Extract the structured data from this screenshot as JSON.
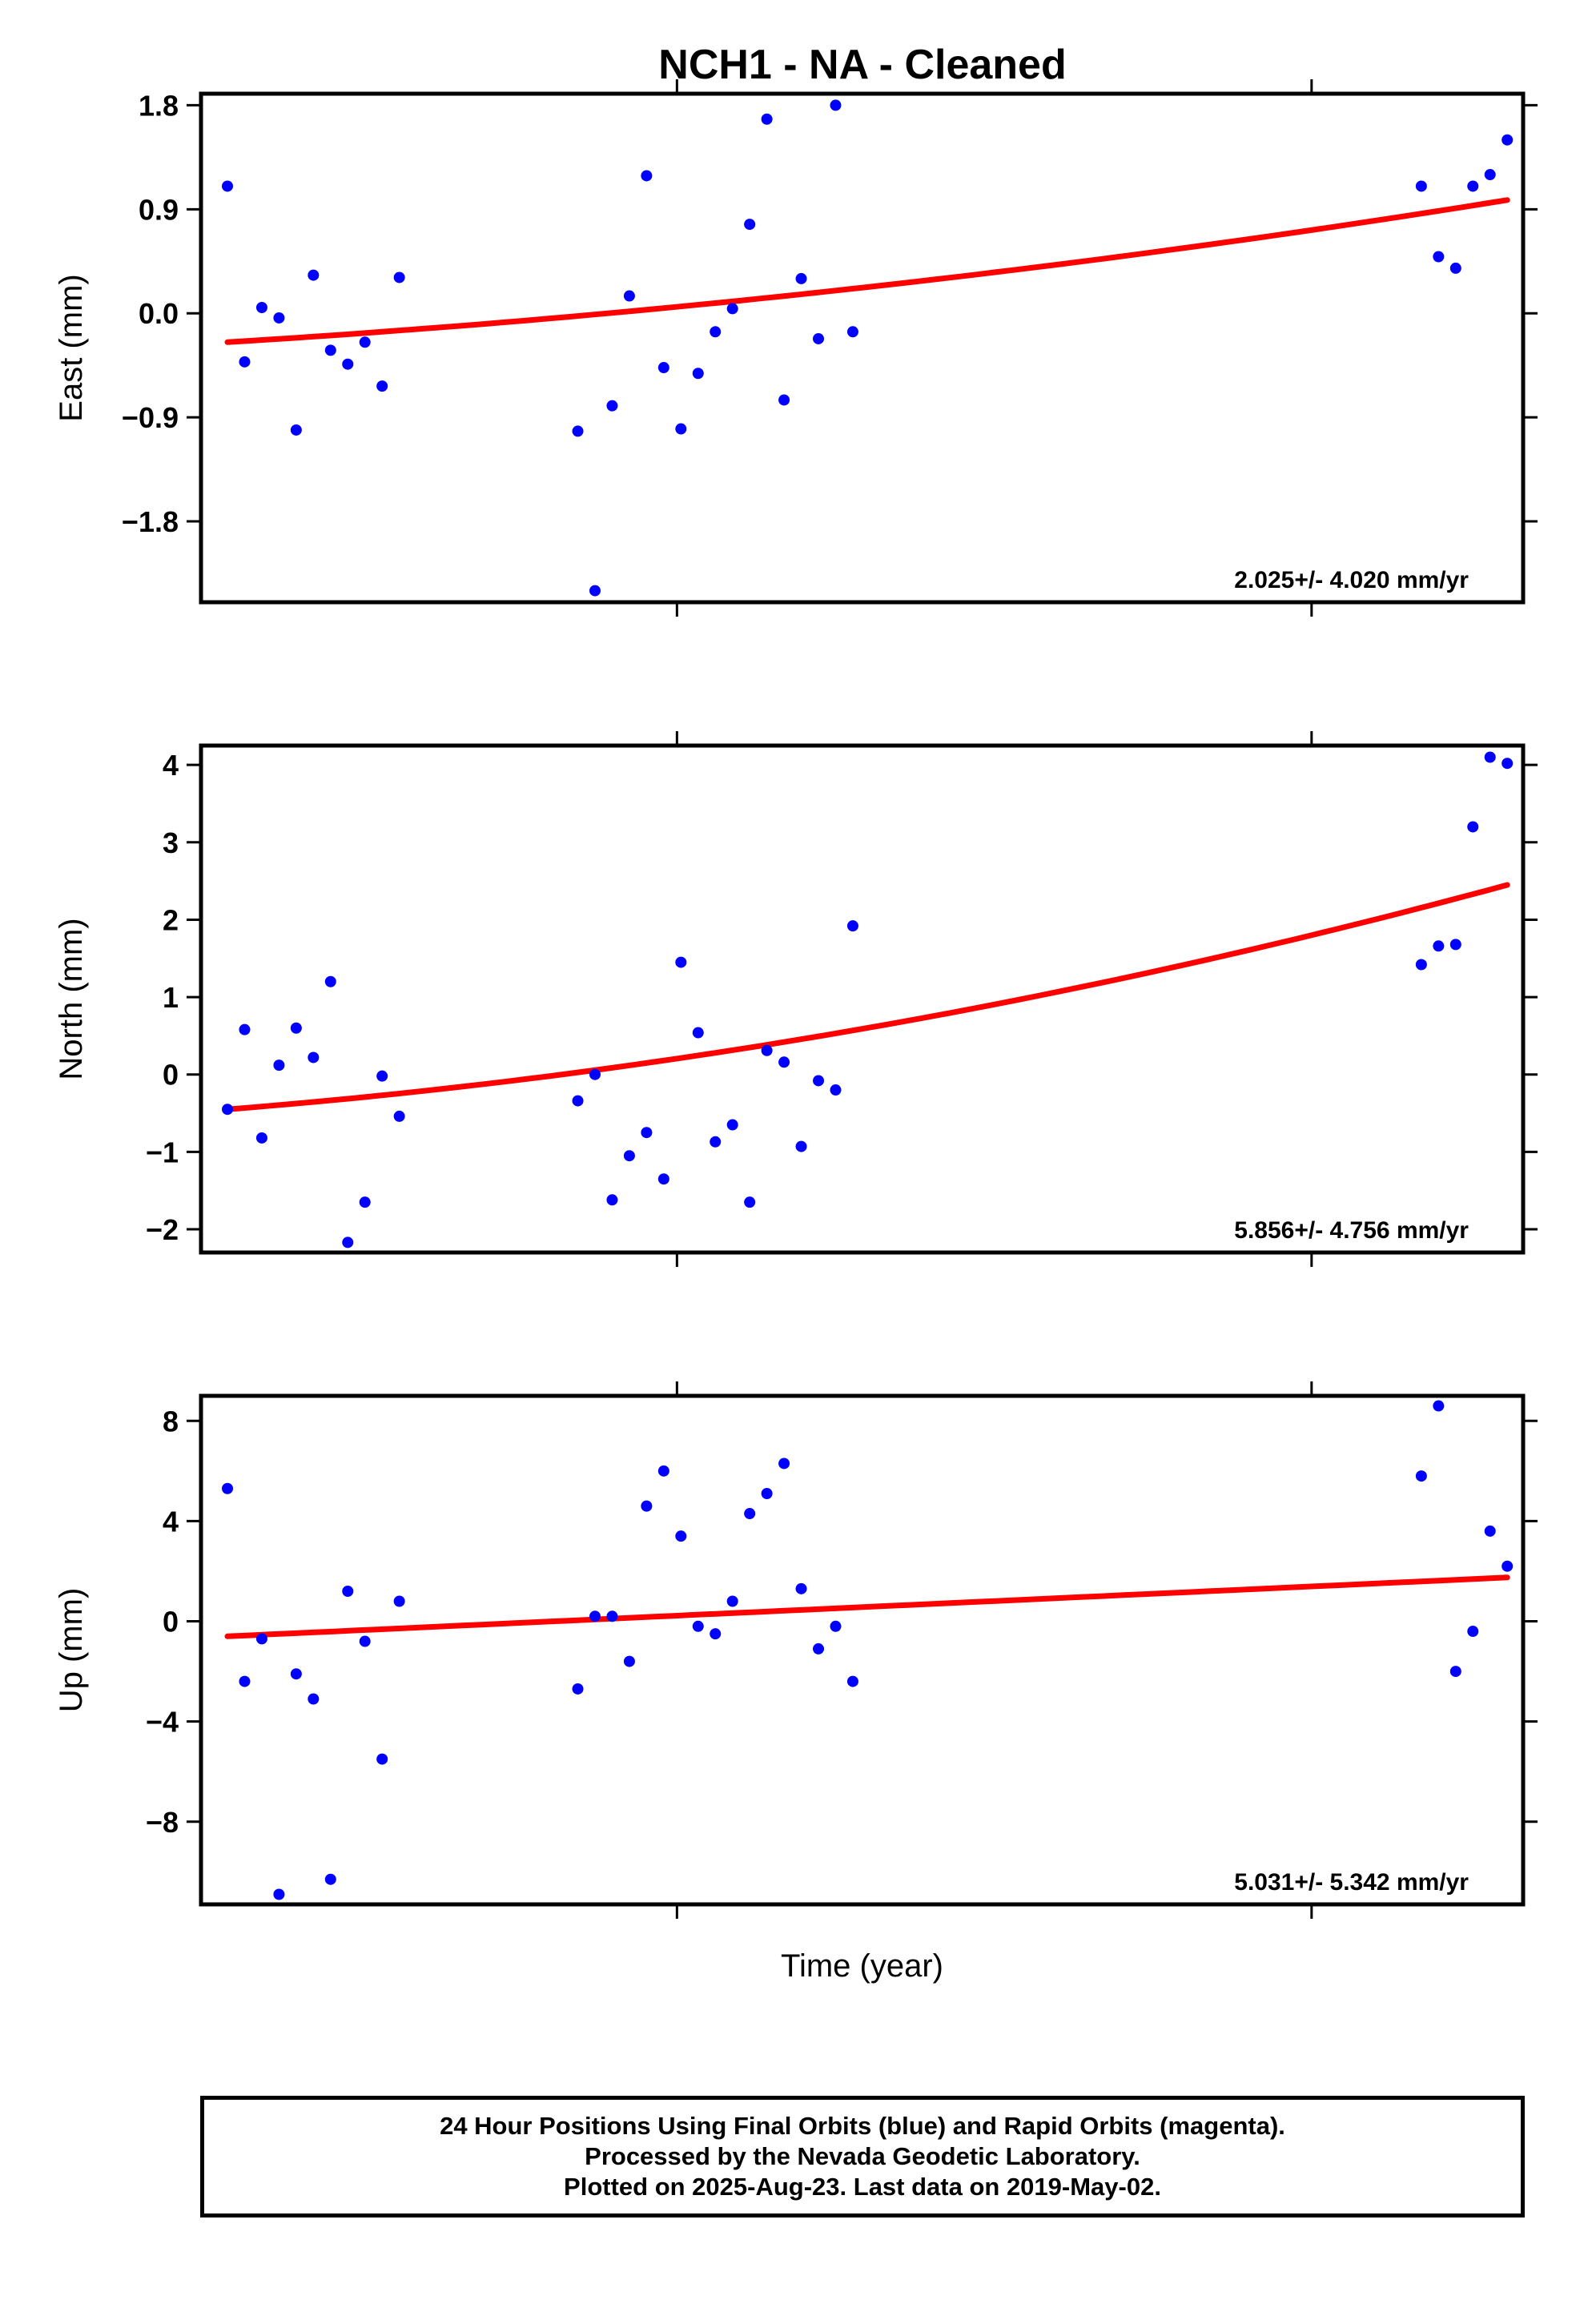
{
  "title": "NCH1  - NA - Cleaned",
  "footer": {
    "line1": "24 Hour Positions Using Final Orbits (blue) and Rapid Orbits (magenta).",
    "line2": "Processed by the Nevada Geodetic Laboratory.",
    "line3": "Plotted on 2025-Aug-23. Last data on 2019-May-02."
  },
  "colors": {
    "points": "#0000ff",
    "fit": "#ff0000",
    "axis": "#000000"
  },
  "chart_data": [
    {
      "type": "scatter",
      "ylabel": "East (mm)",
      "xlabel": "",
      "ylim": [
        -2.5,
        1.9
      ],
      "yticks": [
        "1.8",
        "0.9",
        "0.0",
        "-0.9",
        "-1.8"
      ],
      "ytick_values": [
        1.8,
        0.9,
        0.0,
        -0.9,
        -1.8
      ],
      "xlim": [
        0,
        100
      ],
      "xtick_values": [
        36,
        84
      ],
      "grid": false,
      "rate_label": "2.025+/- 4.020 mm/yr",
      "series": [
        {
          "kind": "points",
          "x": [
            2,
            3.3,
            4.6,
            5.9,
            7.2,
            8.5,
            9.8,
            11.1,
            12.4,
            13.7,
            15,
            28.5,
            29.8,
            31.1,
            32.4,
            33.7,
            35,
            36.3,
            37.6,
            38.9,
            40.2,
            41.5,
            42.8,
            44.1,
            45.4,
            46.7,
            48,
            49.3,
            92.3,
            93.6,
            94.9,
            96.2,
            97.5,
            98.8
          ],
          "y": [
            1.1,
            -0.42,
            0.05,
            -0.04,
            -1.01,
            0.33,
            -0.32,
            -0.44,
            -0.25,
            -0.63,
            0.31,
            -1.02,
            -2.4,
            -0.8,
            0.15,
            1.19,
            -0.47,
            -1.0,
            -0.52,
            -0.16,
            0.04,
            0.77,
            1.68,
            -0.75,
            0.3,
            -0.22,
            1.8,
            -0.16,
            1.1,
            0.49,
            0.39,
            1.1,
            1.2,
            1.5
          ]
        },
        {
          "kind": "fit",
          "x": [
            2,
            98.8
          ],
          "y": [
            -0.25,
            0.98
          ],
          "curvature": 0.45
        }
      ]
    },
    {
      "type": "scatter",
      "ylabel": "North (mm)",
      "xlabel": "",
      "ylim": [
        -2.3,
        4.25
      ],
      "yticks": [
        "4",
        "3",
        "2",
        "1",
        "0",
        "-1",
        "-2"
      ],
      "ytick_values": [
        4,
        3,
        2,
        1,
        0,
        -1,
        -2
      ],
      "xlim": [
        0,
        100
      ],
      "xtick_values": [
        36,
        84
      ],
      "grid": false,
      "rate_label": "5.856+/- 4.756 mm/yr",
      "series": [
        {
          "kind": "points",
          "x": [
            2,
            3.3,
            4.6,
            5.9,
            7.2,
            8.5,
            9.8,
            11.1,
            12.4,
            13.7,
            15,
            28.5,
            29.8,
            31.1,
            32.4,
            33.7,
            35,
            36.3,
            37.6,
            38.9,
            40.2,
            41.5,
            42.8,
            44.1,
            45.4,
            46.7,
            48,
            49.3,
            92.3,
            93.6,
            94.9,
            96.2,
            97.5,
            98.8
          ],
          "y": [
            -0.45,
            0.58,
            -0.82,
            0.12,
            0.6,
            0.22,
            1.2,
            -2.17,
            -1.65,
            -0.02,
            -0.54,
            -0.34,
            0.0,
            -1.62,
            -1.05,
            -0.75,
            -1.35,
            1.45,
            0.54,
            -0.87,
            -0.65,
            -1.65,
            0.31,
            0.16,
            -0.93,
            -0.08,
            -0.2,
            1.92,
            1.42,
            1.66,
            1.68,
            3.2,
            4.1,
            4.02
          ]
        },
        {
          "kind": "fit",
          "x": [
            2,
            98.8
          ],
          "y": [
            -0.45,
            2.45
          ],
          "curvature": 0.55
        }
      ]
    },
    {
      "type": "scatter",
      "ylabel": "Up (mm)",
      "xlabel": "Time (year)",
      "ylim": [
        -11.3,
        9.0
      ],
      "yticks": [
        "8",
        "4",
        "0",
        "-4",
        "-8"
      ],
      "ytick_values": [
        8,
        4,
        0,
        -4,
        -8
      ],
      "xlim": [
        0,
        100
      ],
      "xtick_values": [
        36,
        84
      ],
      "grid": false,
      "rate_label": "5.031+/- 5.342 mm/yr",
      "series": [
        {
          "kind": "points",
          "x": [
            2,
            3.3,
            4.6,
            5.9,
            7.2,
            8.5,
            9.8,
            11.1,
            12.4,
            13.7,
            15,
            28.5,
            29.8,
            31.1,
            32.4,
            33.7,
            35,
            36.3,
            37.6,
            38.9,
            40.2,
            41.5,
            42.8,
            44.1,
            45.4,
            46.7,
            48,
            49.3,
            92.3,
            93.6,
            94.9,
            96.2,
            97.5,
            98.8
          ],
          "y": [
            5.3,
            -2.4,
            -0.7,
            -10.9,
            -2.1,
            -3.1,
            -10.3,
            1.2,
            -0.8,
            -5.5,
            0.8,
            -2.7,
            0.2,
            0.2,
            -1.6,
            4.6,
            6.0,
            3.4,
            -0.2,
            -0.5,
            0.8,
            4.3,
            5.1,
            6.3,
            1.3,
            -1.1,
            -0.2,
            -2.4,
            5.8,
            8.6,
            -2.0,
            -0.4,
            3.6,
            2.2
          ]
        },
        {
          "kind": "fit",
          "x": [
            2,
            98.8
          ],
          "y": [
            -0.6,
            1.75
          ],
          "curvature": 0.0
        }
      ]
    }
  ]
}
